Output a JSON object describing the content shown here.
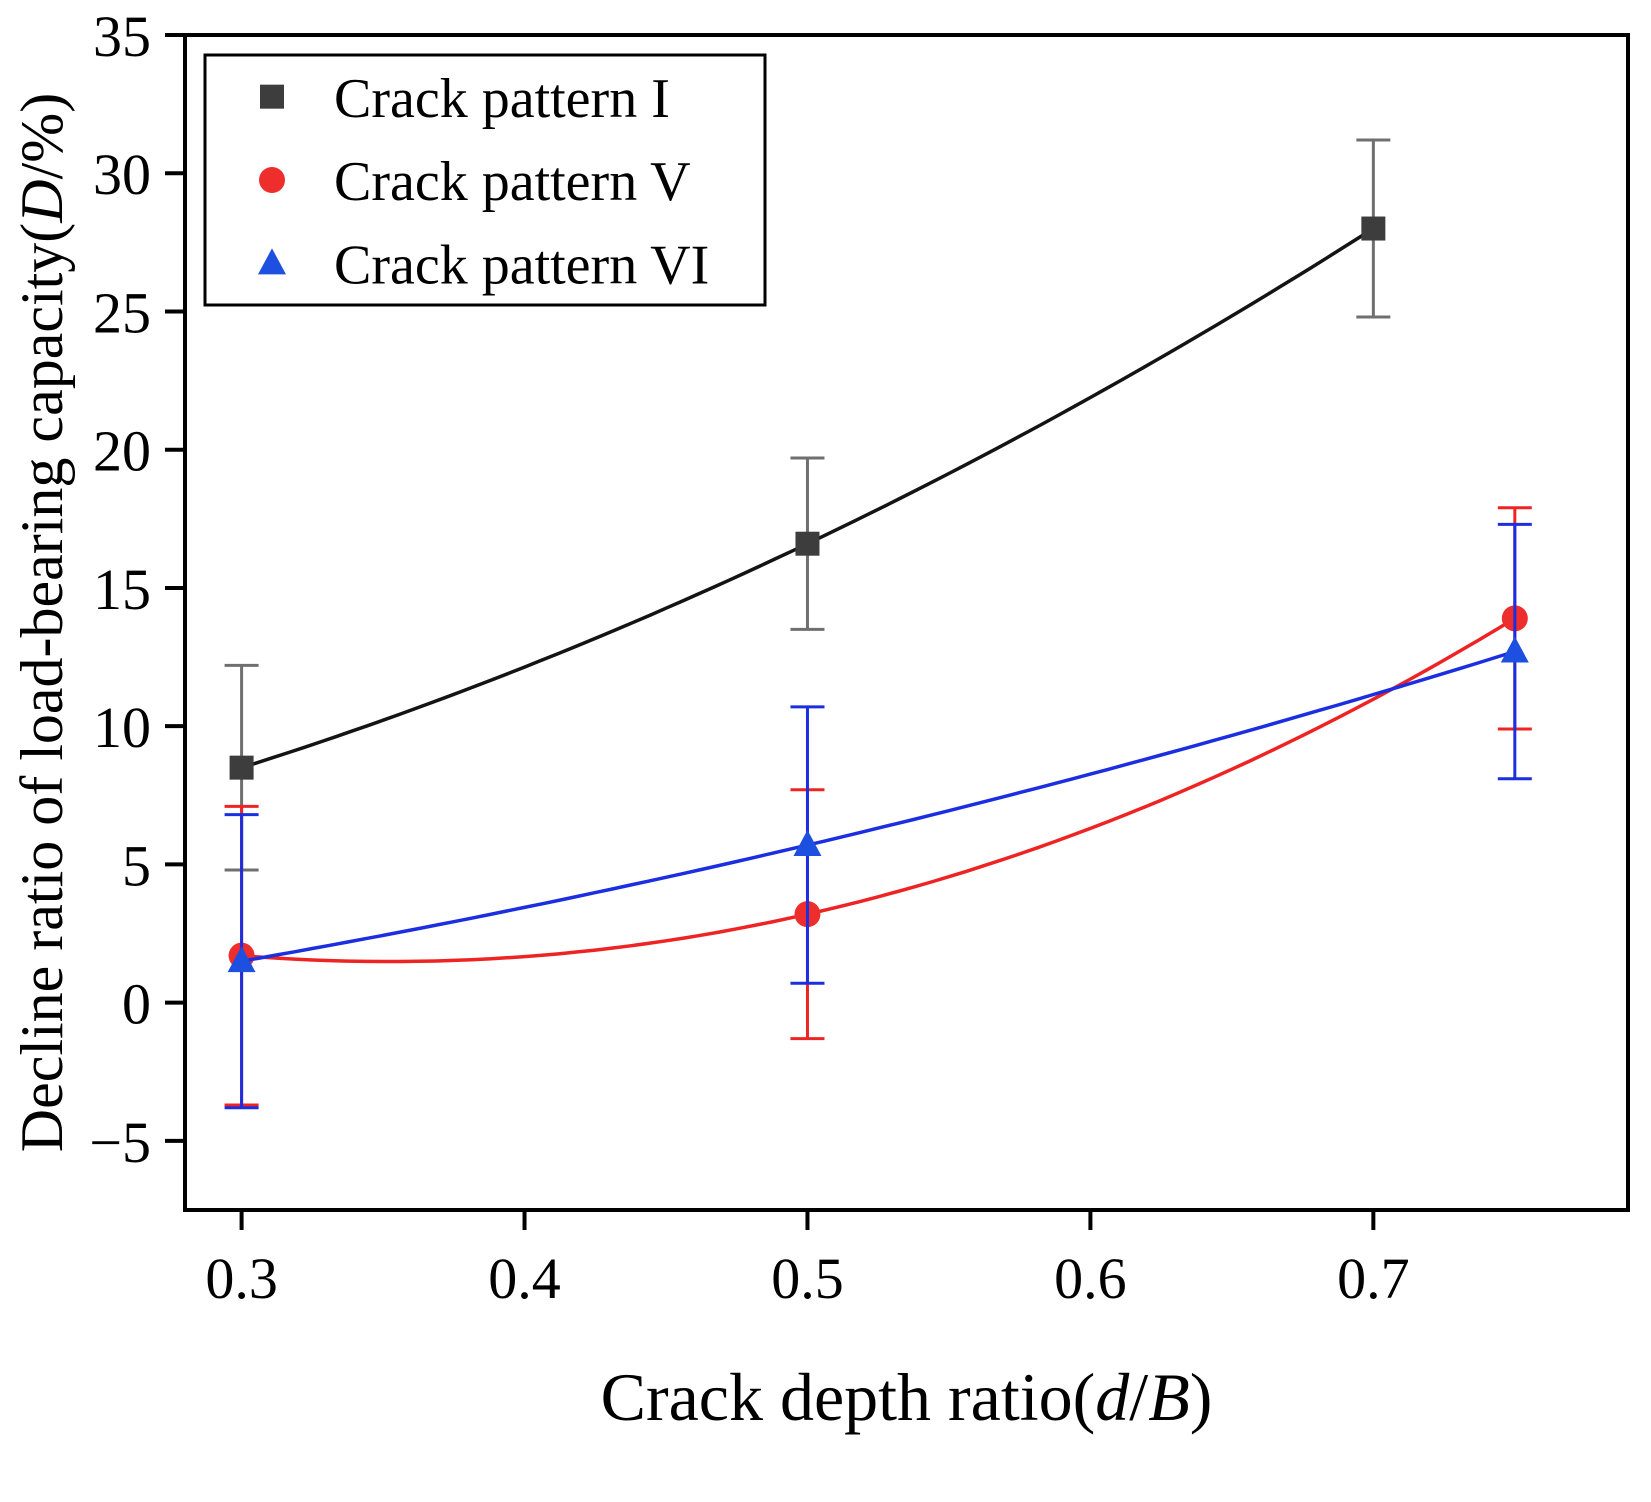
{
  "figure": {
    "background": "#ffffff"
  },
  "chart_data": {
    "type": "line",
    "subtype": "scatter-line-with-error-bars",
    "title": "",
    "xlabel_parts": [
      {
        "text": "Crack depth ratio(",
        "italic": false
      },
      {
        "text": "d",
        "italic": true
      },
      {
        "text": "/",
        "italic": false
      },
      {
        "text": "B",
        "italic": true
      },
      {
        "text": ")",
        "italic": false
      }
    ],
    "ylabel_parts": [
      {
        "text": "Decline ratio of load-bearing capacity(",
        "italic": false
      },
      {
        "text": "D",
        "italic": true
      },
      {
        "text": "/%)",
        "italic": false
      }
    ],
    "xlim": [
      0.28,
      0.79
    ],
    "ylim": [
      -7.5,
      35
    ],
    "x_tick_values": [
      0.3,
      0.4,
      0.5,
      0.6,
      0.7
    ],
    "x_tick_labels": [
      "0.3",
      "0.4",
      "0.5",
      "0.6",
      "0.7"
    ],
    "y_tick_values": [
      -5,
      0,
      5,
      10,
      15,
      20,
      25,
      30,
      35
    ],
    "y_tick_labels": [
      "−5",
      "0",
      "5",
      "10",
      "15",
      "20",
      "25",
      "30",
      "35"
    ],
    "grid": false,
    "axis_color": "#000000",
    "legend": {
      "position": "top-left",
      "entries": [
        "Crack pattern I",
        "Crack pattern V",
        "Crack pattern VI"
      ]
    },
    "series": [
      {
        "name": "Crack pattern I",
        "marker": "square",
        "line_color": "#141414",
        "marker_color": "#3d3d3d",
        "error_color": "#6f6f6f",
        "x": [
          0.3,
          0.5,
          0.7
        ],
        "y": [
          8.5,
          16.6,
          28.0
        ],
        "yerr": [
          3.7,
          3.1,
          3.2
        ]
      },
      {
        "name": "Crack pattern V",
        "marker": "circle",
        "line_color": "#ee2424",
        "marker_color": "#ee2d2d",
        "error_color": "#ee2424",
        "x": [
          0.3,
          0.5,
          0.75
        ],
        "y": [
          1.7,
          3.2,
          13.9
        ],
        "yerr": [
          5.4,
          4.5,
          4.0
        ]
      },
      {
        "name": "Crack pattern VI",
        "marker": "triangle",
        "line_color": "#1c2fe0",
        "marker_color": "#1d4fe0",
        "error_color": "#1c2fe0",
        "x": [
          0.3,
          0.5,
          0.75
        ],
        "y": [
          1.5,
          5.7,
          12.7
        ],
        "yerr": [
          5.3,
          5.0,
          4.6
        ]
      }
    ]
  }
}
